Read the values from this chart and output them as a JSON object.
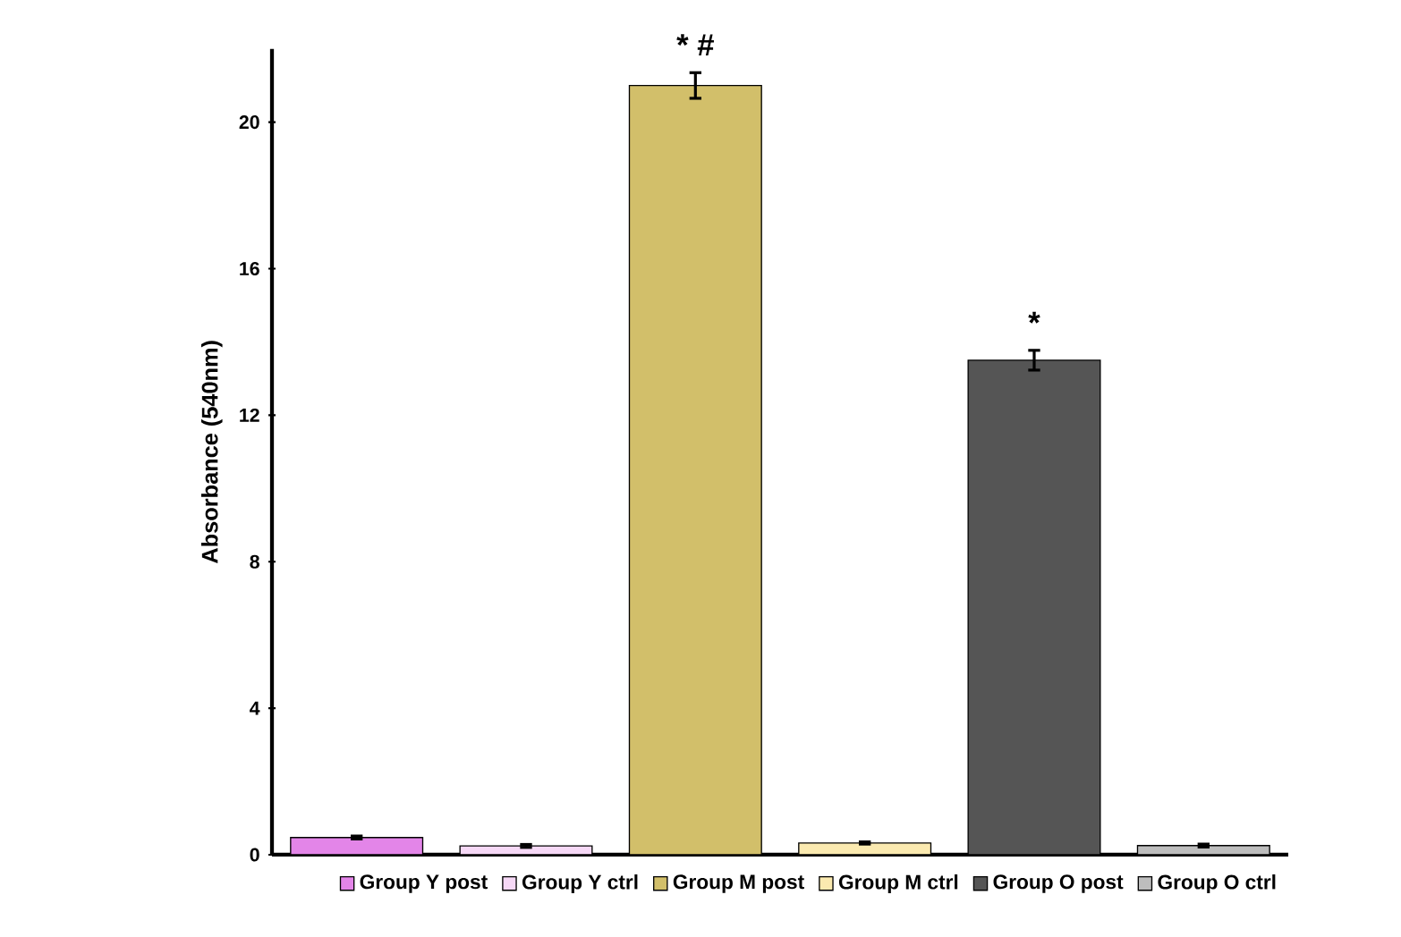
{
  "chart_data": {
    "type": "bar",
    "ylabel": "Absorbance (540nm)",
    "categories": [
      null,
      null,
      null,
      null,
      null,
      null
    ],
    "series": [
      {
        "name": "Group Y post",
        "color": "#e385e8",
        "values": [
          0.47,
          null,
          null,
          null,
          null,
          null
        ],
        "errors": [
          0.04,
          null,
          null,
          null,
          null,
          null
        ]
      },
      {
        "name": "Group Y ctrl",
        "color": "#f6d8f6",
        "values": [
          null,
          0.24,
          null,
          null,
          null,
          null
        ],
        "errors": [
          null,
          0.04,
          null,
          null,
          null,
          null
        ]
      },
      {
        "name": "Group M post",
        "color": "#d2bf6a",
        "values": [
          null,
          null,
          21.0,
          null,
          null,
          null
        ],
        "errors": [
          null,
          null,
          0.35,
          null,
          null,
          null
        ]
      },
      {
        "name": "Group M ctrl",
        "color": "#fbeab0",
        "values": [
          null,
          null,
          null,
          0.32,
          null,
          null
        ],
        "errors": [
          null,
          null,
          null,
          0.03,
          null,
          null
        ]
      },
      {
        "name": "Group O post",
        "color": "#555555",
        "values": [
          null,
          null,
          null,
          null,
          13.5,
          null
        ],
        "errors": [
          null,
          null,
          null,
          null,
          0.27,
          null
        ]
      },
      {
        "name": "Group  O ctrl",
        "color": "#bdbdbd",
        "values": [
          null,
          null,
          null,
          null,
          null,
          0.25
        ],
        "errors": [
          null,
          null,
          null,
          null,
          null,
          0.04
        ]
      }
    ],
    "ylim": [
      0,
      22
    ],
    "yticks": [
      0,
      4,
      8,
      12,
      16,
      20
    ],
    "annotations": [
      "* #",
      "*"
    ],
    "legend": "bottom",
    "grid": false
  }
}
